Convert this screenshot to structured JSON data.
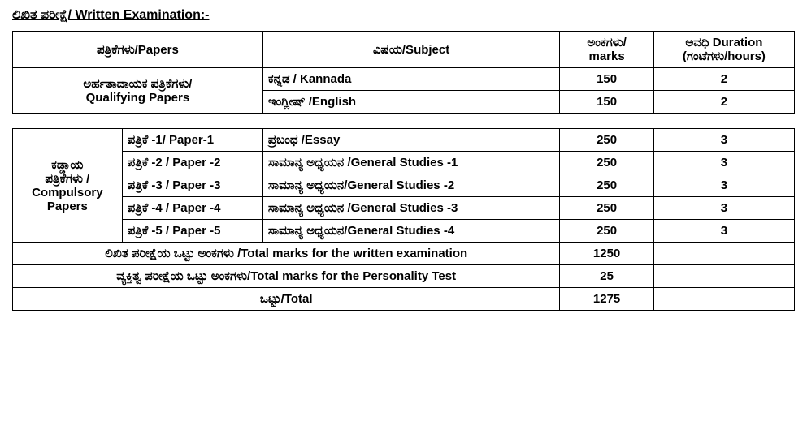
{
  "heading": "ಲಿಖಿತ ಪರೀಕ್ಷೆ/ Written Examination:-",
  "headers": {
    "papers": "ಪತ್ರಿಕೆಗಳು/Papers",
    "subject": "ವಿಷಯ/Subject",
    "marks_line1": "ಅಂಕಗಳು/",
    "marks_line2": "marks",
    "duration_line1": "ಅವಧಿ  Duration",
    "duration_line2": "(ಗಂಟೆಗಳು/hours)"
  },
  "qualifying": {
    "label_line1": "ಅರ್ಹತಾದಾಯಕ ಪತ್ರಿಕೆಗಳು/",
    "label_line2": "Qualifying Papers",
    "rows": [
      {
        "subject": "ಕನ್ನಡ / Kannada",
        "marks": "150",
        "duration": "2"
      },
      {
        "subject": "ಇಂಗ್ಲೀಷ್ /English",
        "marks": "150",
        "duration": "2"
      }
    ]
  },
  "compulsory": {
    "label_l1": "ಕಡ್ಡಾಯ",
    "label_l2": "ಪತ್ರಿಕೆಗಳು /",
    "label_l3": "Compulsory",
    "label_l4": "Papers",
    "rows": [
      {
        "paper": "ಪತ್ರಿಕೆ -1/ Paper-1",
        "subject": "ಪ್ರಬಂಧ /Essay",
        "marks": "250",
        "duration": "3"
      },
      {
        "paper": "ಪತ್ರಿಕೆ -2 / Paper -2",
        "subject": "ಸಾಮಾನ್ಯ ಅಧ್ಯಯನ /General Studies -1",
        "marks": "250",
        "duration": "3"
      },
      {
        "paper": "ಪತ್ರಿಕೆ -3 / Paper -3",
        "subject": "ಸಾಮಾನ್ಯ ಅಧ್ಯಯನ/General Studies -2",
        "marks": "250",
        "duration": "3"
      },
      {
        "paper": "ಪತ್ರಿಕೆ -4 / Paper -4",
        "subject": "ಸಾಮಾನ್ಯ ಅಧ್ಯಯನ /General Studies -3",
        "marks": "250",
        "duration": "3"
      },
      {
        "paper": "ಪತ್ರಿಕೆ -5 / Paper -5",
        "subject": "ಸಾಮಾನ್ಯ ಅಧ್ಯಯನ/General Studies -4",
        "marks": "250",
        "duration": "3"
      }
    ]
  },
  "totals": {
    "written_label": "ಲಿಖಿತ ಪರೀಕ್ಷೆಯ ಒಟ್ಟು ಅಂಕಗಳು /Total marks for the written  examination",
    "written_marks": "1250",
    "personality_label": "ವ್ಯಕ್ತಿತ್ವ ಪರೀಕ್ಷೆಯ ಒಟ್ಟು ಅಂಕಗಳು/Total marks for the Personality Test",
    "personality_marks": "25",
    "total_label": "ಒಟ್ಟು/Total",
    "total_marks": "1275"
  }
}
